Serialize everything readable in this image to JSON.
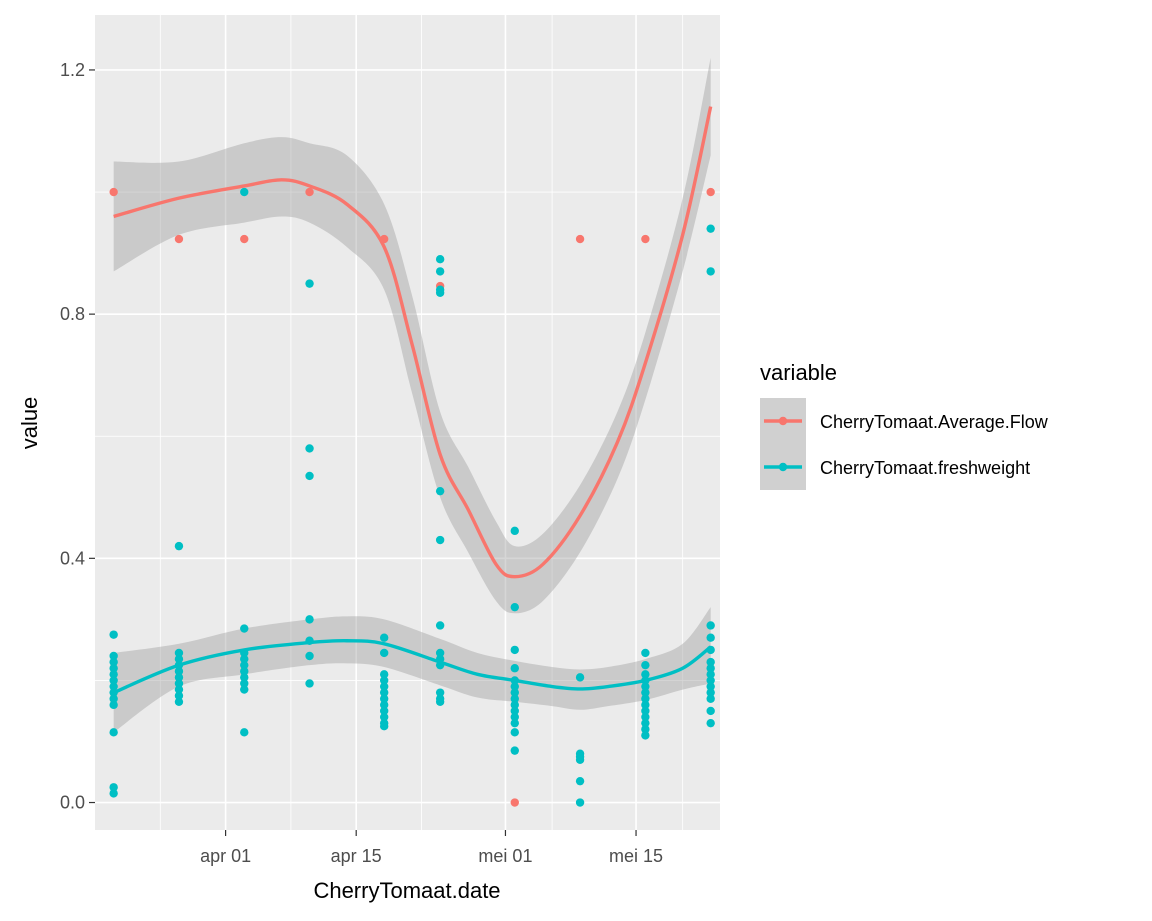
{
  "chart_data": {
    "type": "scatter",
    "title": "",
    "xlabel": "CherryTomaat.date",
    "ylabel": "value",
    "x_ticks": [
      "apr 01",
      "apr 15",
      "mei 01",
      "mei 15"
    ],
    "y_ticks": [
      "0.0",
      "0.4",
      "0.8",
      "1.2"
    ],
    "xlim": [
      "2021-03-18",
      "2021-05-24"
    ],
    "ylim": [
      -0.045,
      1.29
    ],
    "grid": true,
    "legend": {
      "title": "variable",
      "position": "right"
    },
    "smooth": "loess with confidence band",
    "series": [
      {
        "name": "CherryTomaat.Average.Flow",
        "color": "#F8766D",
        "points": [
          [
            "2021-03-20",
            1.0
          ],
          [
            "2021-03-27",
            0.923
          ],
          [
            "2021-04-03",
            0.923
          ],
          [
            "2021-04-10",
            1.0
          ],
          [
            "2021-04-18",
            0.923
          ],
          [
            "2021-04-24",
            0.846
          ],
          [
            "2021-05-02",
            0.0
          ],
          [
            "2021-05-09",
            0.923
          ],
          [
            "2021-05-16",
            0.923
          ],
          [
            "2021-05-23",
            1.0
          ]
        ],
        "smooth_line": [
          [
            "2021-03-20",
            0.96
          ],
          [
            "2021-03-27",
            0.99
          ],
          [
            "2021-04-03",
            1.01
          ],
          [
            "2021-04-07",
            1.02
          ],
          [
            "2021-04-10",
            1.01
          ],
          [
            "2021-04-14",
            0.98
          ],
          [
            "2021-04-18",
            0.91
          ],
          [
            "2021-04-21",
            0.75
          ],
          [
            "2021-04-24",
            0.57
          ],
          [
            "2021-04-27",
            0.48
          ],
          [
            "2021-04-30",
            0.39
          ],
          [
            "2021-05-02",
            0.37
          ],
          [
            "2021-05-05",
            0.39
          ],
          [
            "2021-05-09",
            0.47
          ],
          [
            "2021-05-13",
            0.59
          ],
          [
            "2021-05-16",
            0.72
          ],
          [
            "2021-05-20",
            0.93
          ],
          [
            "2021-05-23",
            1.14
          ]
        ],
        "band_upper": [
          [
            "2021-03-20",
            1.05
          ],
          [
            "2021-03-27",
            1.05
          ],
          [
            "2021-04-03",
            1.08
          ],
          [
            "2021-04-07",
            1.09
          ],
          [
            "2021-04-10",
            1.08
          ],
          [
            "2021-04-14",
            1.06
          ],
          [
            "2021-04-18",
            0.98
          ],
          [
            "2021-04-21",
            0.83
          ],
          [
            "2021-04-24",
            0.64
          ],
          [
            "2021-04-27",
            0.55
          ],
          [
            "2021-04-30",
            0.46
          ],
          [
            "2021-05-02",
            0.42
          ],
          [
            "2021-05-05",
            0.44
          ],
          [
            "2021-05-09",
            0.52
          ],
          [
            "2021-05-13",
            0.64
          ],
          [
            "2021-05-16",
            0.77
          ],
          [
            "2021-05-20",
            0.99
          ],
          [
            "2021-05-23",
            1.22
          ]
        ],
        "band_lower": [
          [
            "2021-03-20",
            0.87
          ],
          [
            "2021-03-27",
            0.93
          ],
          [
            "2021-04-03",
            0.95
          ],
          [
            "2021-04-07",
            0.96
          ],
          [
            "2021-04-10",
            0.95
          ],
          [
            "2021-04-14",
            0.91
          ],
          [
            "2021-04-18",
            0.84
          ],
          [
            "2021-04-21",
            0.67
          ],
          [
            "2021-04-24",
            0.5
          ],
          [
            "2021-04-27",
            0.41
          ],
          [
            "2021-04-30",
            0.33
          ],
          [
            "2021-05-02",
            0.31
          ],
          [
            "2021-05-05",
            0.33
          ],
          [
            "2021-05-09",
            0.41
          ],
          [
            "2021-05-13",
            0.53
          ],
          [
            "2021-05-16",
            0.66
          ],
          [
            "2021-05-20",
            0.87
          ],
          [
            "2021-05-23",
            1.06
          ]
        ]
      },
      {
        "name": "CherryTomaat.freshweight",
        "color": "#00BFC4",
        "points": [
          [
            "2021-03-20",
            0.275
          ],
          [
            "2021-03-20",
            0.24
          ],
          [
            "2021-03-20",
            0.23
          ],
          [
            "2021-03-20",
            0.22
          ],
          [
            "2021-03-20",
            0.21
          ],
          [
            "2021-03-20",
            0.2
          ],
          [
            "2021-03-20",
            0.19
          ],
          [
            "2021-03-20",
            0.18
          ],
          [
            "2021-03-20",
            0.17
          ],
          [
            "2021-03-20",
            0.16
          ],
          [
            "2021-03-20",
            0.115
          ],
          [
            "2021-03-20",
            0.025
          ],
          [
            "2021-03-20",
            0.015
          ],
          [
            "2021-03-27",
            0.42
          ],
          [
            "2021-03-27",
            0.245
          ],
          [
            "2021-03-27",
            0.235
          ],
          [
            "2021-03-27",
            0.225
          ],
          [
            "2021-03-27",
            0.215
          ],
          [
            "2021-03-27",
            0.205
          ],
          [
            "2021-03-27",
            0.195
          ],
          [
            "2021-03-27",
            0.185
          ],
          [
            "2021-03-27",
            0.175
          ],
          [
            "2021-03-27",
            0.165
          ],
          [
            "2021-04-03",
            1.0
          ],
          [
            "2021-04-03",
            0.285
          ],
          [
            "2021-04-03",
            0.245
          ],
          [
            "2021-04-03",
            0.235
          ],
          [
            "2021-04-03",
            0.225
          ],
          [
            "2021-04-03",
            0.215
          ],
          [
            "2021-04-03",
            0.205
          ],
          [
            "2021-04-03",
            0.195
          ],
          [
            "2021-04-03",
            0.185
          ],
          [
            "2021-04-03",
            0.115
          ],
          [
            "2021-04-10",
            0.85
          ],
          [
            "2021-04-10",
            0.58
          ],
          [
            "2021-04-10",
            0.535
          ],
          [
            "2021-04-10",
            0.3
          ],
          [
            "2021-04-10",
            0.265
          ],
          [
            "2021-04-10",
            0.24
          ],
          [
            "2021-04-10",
            0.195
          ],
          [
            "2021-04-18",
            0.27
          ],
          [
            "2021-04-18",
            0.245
          ],
          [
            "2021-04-18",
            0.21
          ],
          [
            "2021-04-18",
            0.2
          ],
          [
            "2021-04-18",
            0.19
          ],
          [
            "2021-04-18",
            0.18
          ],
          [
            "2021-04-18",
            0.17
          ],
          [
            "2021-04-18",
            0.16
          ],
          [
            "2021-04-18",
            0.15
          ],
          [
            "2021-04-18",
            0.14
          ],
          [
            "2021-04-18",
            0.13
          ],
          [
            "2021-04-18",
            0.125
          ],
          [
            "2021-04-24",
            0.89
          ],
          [
            "2021-04-24",
            0.87
          ],
          [
            "2021-04-24",
            0.84
          ],
          [
            "2021-04-24",
            0.835
          ],
          [
            "2021-04-24",
            0.51
          ],
          [
            "2021-04-24",
            0.43
          ],
          [
            "2021-04-24",
            0.29
          ],
          [
            "2021-04-24",
            0.245
          ],
          [
            "2021-04-24",
            0.235
          ],
          [
            "2021-04-24",
            0.225
          ],
          [
            "2021-04-24",
            0.18
          ],
          [
            "2021-04-24",
            0.17
          ],
          [
            "2021-04-24",
            0.165
          ],
          [
            "2021-05-02",
            0.445
          ],
          [
            "2021-05-02",
            0.32
          ],
          [
            "2021-05-02",
            0.25
          ],
          [
            "2021-05-02",
            0.22
          ],
          [
            "2021-05-02",
            0.2
          ],
          [
            "2021-05-02",
            0.19
          ],
          [
            "2021-05-02",
            0.18
          ],
          [
            "2021-05-02",
            0.17
          ],
          [
            "2021-05-02",
            0.16
          ],
          [
            "2021-05-02",
            0.15
          ],
          [
            "2021-05-02",
            0.14
          ],
          [
            "2021-05-02",
            0.13
          ],
          [
            "2021-05-02",
            0.115
          ],
          [
            "2021-05-02",
            0.085
          ],
          [
            "2021-05-09",
            0.205
          ],
          [
            "2021-05-09",
            0.08
          ],
          [
            "2021-05-09",
            0.075
          ],
          [
            "2021-05-09",
            0.07
          ],
          [
            "2021-05-09",
            0.035
          ],
          [
            "2021-05-09",
            0.0
          ],
          [
            "2021-05-16",
            0.245
          ],
          [
            "2021-05-16",
            0.225
          ],
          [
            "2021-05-16",
            0.21
          ],
          [
            "2021-05-16",
            0.2
          ],
          [
            "2021-05-16",
            0.19
          ],
          [
            "2021-05-16",
            0.18
          ],
          [
            "2021-05-16",
            0.17
          ],
          [
            "2021-05-16",
            0.16
          ],
          [
            "2021-05-16",
            0.15
          ],
          [
            "2021-05-16",
            0.14
          ],
          [
            "2021-05-16",
            0.13
          ],
          [
            "2021-05-16",
            0.12
          ],
          [
            "2021-05-16",
            0.11
          ],
          [
            "2021-05-23",
            0.94
          ],
          [
            "2021-05-23",
            0.87
          ],
          [
            "2021-05-23",
            0.29
          ],
          [
            "2021-05-23",
            0.27
          ],
          [
            "2021-05-23",
            0.25
          ],
          [
            "2021-05-23",
            0.23
          ],
          [
            "2021-05-23",
            0.22
          ],
          [
            "2021-05-23",
            0.21
          ],
          [
            "2021-05-23",
            0.2
          ],
          [
            "2021-05-23",
            0.19
          ],
          [
            "2021-05-23",
            0.18
          ],
          [
            "2021-05-23",
            0.17
          ],
          [
            "2021-05-23",
            0.15
          ],
          [
            "2021-05-23",
            0.13
          ]
        ],
        "smooth_line": [
          [
            "2021-03-20",
            0.18
          ],
          [
            "2021-03-27",
            0.225
          ],
          [
            "2021-04-03",
            0.25
          ],
          [
            "2021-04-10",
            0.262
          ],
          [
            "2021-04-14",
            0.265
          ],
          [
            "2021-04-18",
            0.26
          ],
          [
            "2021-04-24",
            0.23
          ],
          [
            "2021-04-28",
            0.21
          ],
          [
            "2021-05-02",
            0.2
          ],
          [
            "2021-05-06",
            0.19
          ],
          [
            "2021-05-09",
            0.186
          ],
          [
            "2021-05-12",
            0.19
          ],
          [
            "2021-05-16",
            0.2
          ],
          [
            "2021-05-20",
            0.22
          ],
          [
            "2021-05-23",
            0.255
          ]
        ],
        "band_upper": [
          [
            "2021-03-20",
            0.245
          ],
          [
            "2021-03-27",
            0.26
          ],
          [
            "2021-04-03",
            0.285
          ],
          [
            "2021-04-10",
            0.3
          ],
          [
            "2021-04-14",
            0.305
          ],
          [
            "2021-04-18",
            0.3
          ],
          [
            "2021-04-24",
            0.268
          ],
          [
            "2021-04-28",
            0.245
          ],
          [
            "2021-05-02",
            0.232
          ],
          [
            "2021-05-06",
            0.222
          ],
          [
            "2021-05-09",
            0.218
          ],
          [
            "2021-05-12",
            0.222
          ],
          [
            "2021-05-16",
            0.235
          ],
          [
            "2021-05-20",
            0.26
          ],
          [
            "2021-05-23",
            0.32
          ]
        ],
        "band_lower": [
          [
            "2021-03-20",
            0.115
          ],
          [
            "2021-03-27",
            0.19
          ],
          [
            "2021-04-03",
            0.21
          ],
          [
            "2021-04-10",
            0.225
          ],
          [
            "2021-04-14",
            0.228
          ],
          [
            "2021-04-18",
            0.222
          ],
          [
            "2021-04-24",
            0.192
          ],
          [
            "2021-04-28",
            0.172
          ],
          [
            "2021-05-02",
            0.165
          ],
          [
            "2021-05-06",
            0.158
          ],
          [
            "2021-05-09",
            0.152
          ],
          [
            "2021-05-12",
            0.158
          ],
          [
            "2021-05-16",
            0.168
          ],
          [
            "2021-05-20",
            0.185
          ],
          [
            "2021-05-23",
            0.195
          ]
        ]
      }
    ]
  }
}
